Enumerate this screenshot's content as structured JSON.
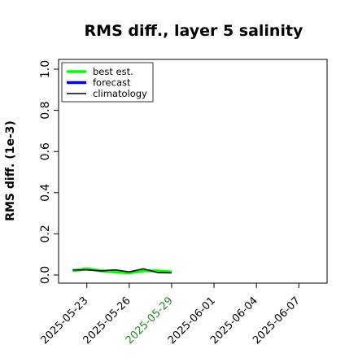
{
  "chart_data": {
    "type": "line",
    "title": "RMS diff., layer 5 salinity",
    "ylabel": "RMS diff. (1e-3)",
    "xlabel": "",
    "ylim": [
      0,
      1.0
    ],
    "yticks": [
      "0.0",
      "0.2",
      "0.4",
      "0.6",
      "0.8",
      "1.0"
    ],
    "xlim": [
      "2025-05-21",
      "2025-06-09"
    ],
    "xticks": [
      {
        "date": "2025-05-23",
        "label": "2025-05-23",
        "color": "#000000"
      },
      {
        "date": "2025-05-26",
        "label": "2025-05-26",
        "color": "#000000"
      },
      {
        "date": "2025-05-29",
        "label": "2025-05-29",
        "color": "#228b22"
      },
      {
        "date": "2025-06-01",
        "label": "2025-06-01",
        "color": "#000000"
      },
      {
        "date": "2025-06-04",
        "label": "2025-06-04",
        "color": "#000000"
      },
      {
        "date": "2025-06-07",
        "label": "2025-06-07",
        "color": "#000000"
      }
    ],
    "grid": false,
    "legend_position": "top-left",
    "series": [
      {
        "name": "best est.",
        "color": "#00ff00",
        "x": [
          "2025-05-22",
          "2025-05-23",
          "2025-05-24",
          "2025-05-25",
          "2025-05-26",
          "2025-05-27",
          "2025-05-28",
          "2025-05-29"
        ],
        "values": [
          0.02,
          0.03,
          0.02,
          0.015,
          0.01,
          0.02,
          0.02,
          0.015
        ]
      },
      {
        "name": "forecast",
        "color": "#0000ff",
        "x": [],
        "values": []
      },
      {
        "name": "climatology",
        "color": "#000000",
        "x": [
          "2025-05-22",
          "2025-05-23",
          "2025-05-24",
          "2025-05-25",
          "2025-05-26",
          "2025-05-27",
          "2025-05-28",
          "2025-05-29"
        ],
        "values": [
          0.025,
          0.025,
          0.02,
          0.025,
          0.015,
          0.03,
          0.012,
          0.01
        ]
      }
    ]
  }
}
